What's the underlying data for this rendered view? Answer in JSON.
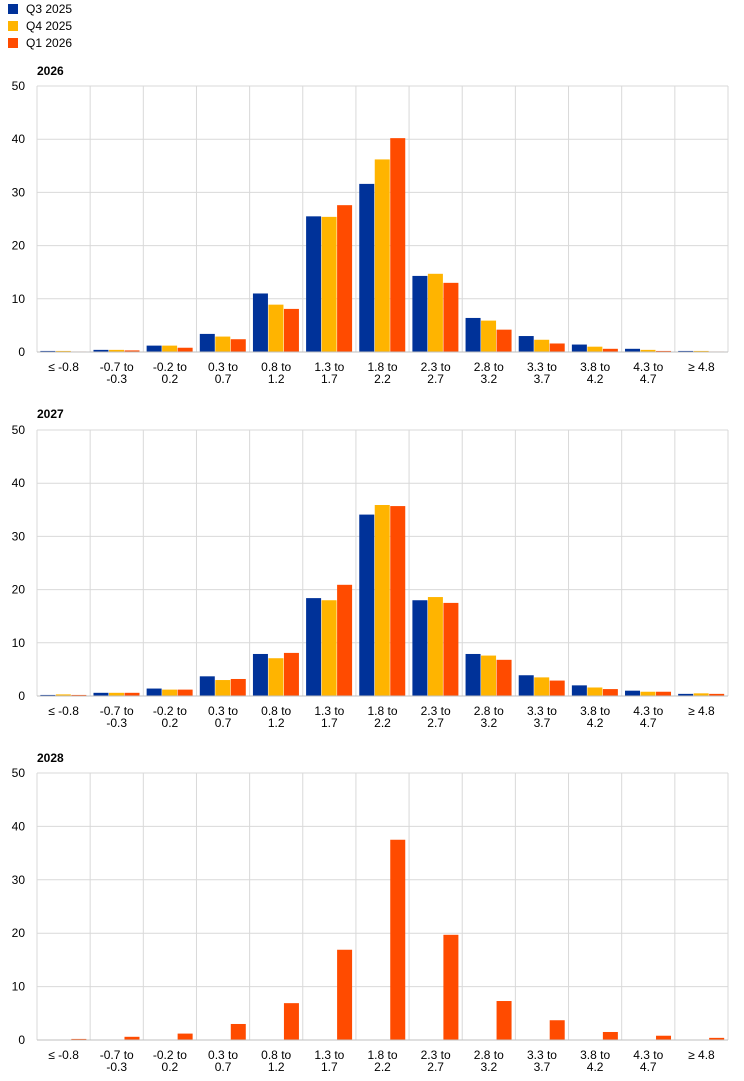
{
  "legend": {
    "items": [
      {
        "label": "Q3 2025",
        "color": "#003299"
      },
      {
        "label": "Q4 2025",
        "color": "#FFB400"
      },
      {
        "label": "Q1 2026",
        "color": "#FF4B00"
      }
    ]
  },
  "chart_data": [
    {
      "type": "bar",
      "title": "2026",
      "categories": [
        [
          "≤ -0.8"
        ],
        [
          "-0.7 to",
          "-0.3"
        ],
        [
          "-0.2 to",
          "0.2"
        ],
        [
          "0.3 to",
          "0.7"
        ],
        [
          "0.8 to",
          "1.2"
        ],
        [
          "1.3 to",
          "1.7"
        ],
        [
          "1.8 to",
          "2.2"
        ],
        [
          "2.3 to",
          "2.7"
        ],
        [
          "2.8 to",
          "3.2"
        ],
        [
          "3.3 to",
          "3.7"
        ],
        [
          "3.8 to",
          "4.2"
        ],
        [
          "4.3 to",
          "4.7"
        ],
        [
          "≥ 4.8"
        ]
      ],
      "ylim": [
        0,
        50
      ],
      "yticks": [
        0,
        10,
        20,
        30,
        40,
        50
      ],
      "grid": true,
      "series": [
        {
          "name": "Q3 2025",
          "color": "#003299",
          "values": [
            0.2,
            0.4,
            1.2,
            3.4,
            11.0,
            25.5,
            31.6,
            14.3,
            6.4,
            3.0,
            1.4,
            0.6,
            0.2
          ]
        },
        {
          "name": "Q4 2025",
          "color": "#FFB400",
          "values": [
            0.2,
            0.4,
            1.2,
            2.9,
            8.9,
            25.4,
            36.2,
            14.7,
            5.9,
            2.3,
            1.0,
            0.4,
            0.2
          ]
        },
        {
          "name": "Q1 2026",
          "color": "#FF4B00",
          "values": [
            0.1,
            0.3,
            0.8,
            2.4,
            8.1,
            27.6,
            40.2,
            13.0,
            4.2,
            1.6,
            0.6,
            0.2,
            0.1
          ]
        }
      ]
    },
    {
      "type": "bar",
      "title": "2027",
      "categories": [
        [
          "≤ -0.8"
        ],
        [
          "-0.7 to",
          "-0.3"
        ],
        [
          "-0.2 to",
          "0.2"
        ],
        [
          "0.3 to",
          "0.7"
        ],
        [
          "0.8 to",
          "1.2"
        ],
        [
          "1.3 to",
          "1.7"
        ],
        [
          "1.8 to",
          "2.2"
        ],
        [
          "2.3 to",
          "2.7"
        ],
        [
          "2.8 to",
          "3.2"
        ],
        [
          "3.3 to",
          "3.7"
        ],
        [
          "3.8 to",
          "4.2"
        ],
        [
          "4.3 to",
          "4.7"
        ],
        [
          "≥ 4.8"
        ]
      ],
      "ylim": [
        0,
        50
      ],
      "yticks": [
        0,
        10,
        20,
        30,
        40,
        50
      ],
      "grid": true,
      "series": [
        {
          "name": "Q3 2025",
          "color": "#003299",
          "values": [
            0.2,
            0.6,
            1.4,
            3.7,
            7.9,
            18.4,
            34.1,
            18.0,
            7.9,
            3.9,
            2.0,
            1.0,
            0.4
          ]
        },
        {
          "name": "Q4 2025",
          "color": "#FFB400",
          "values": [
            0.3,
            0.6,
            1.2,
            3.0,
            7.1,
            18.0,
            35.9,
            18.6,
            7.6,
            3.5,
            1.6,
            0.8,
            0.5
          ]
        },
        {
          "name": "Q1 2026",
          "color": "#FF4B00",
          "values": [
            0.2,
            0.6,
            1.2,
            3.2,
            8.1,
            20.9,
            35.7,
            17.5,
            6.8,
            2.9,
            1.3,
            0.8,
            0.4
          ]
        }
      ]
    },
    {
      "type": "bar",
      "title": "2028",
      "categories": [
        [
          "≤ -0.8"
        ],
        [
          "-0.7 to",
          "-0.3"
        ],
        [
          "-0.2 to",
          "0.2"
        ],
        [
          "0.3 to",
          "0.7"
        ],
        [
          "0.8 to",
          "1.2"
        ],
        [
          "1.3 to",
          "1.7"
        ],
        [
          "1.8 to",
          "2.2"
        ],
        [
          "2.3 to",
          "2.7"
        ],
        [
          "2.8 to",
          "3.2"
        ],
        [
          "3.3 to",
          "3.7"
        ],
        [
          "3.8 to",
          "4.2"
        ],
        [
          "4.3 to",
          "4.7"
        ],
        [
          "≥ 4.8"
        ]
      ],
      "ylim": [
        0,
        50
      ],
      "yticks": [
        0,
        10,
        20,
        30,
        40,
        50
      ],
      "grid": true,
      "series": [
        {
          "name": "Q1 2026",
          "color": "#FF4B00",
          "values": [
            0.2,
            0.6,
            1.2,
            3.0,
            6.9,
            16.9,
            37.5,
            19.7,
            7.3,
            3.7,
            1.5,
            0.8,
            0.4
          ]
        }
      ]
    }
  ]
}
